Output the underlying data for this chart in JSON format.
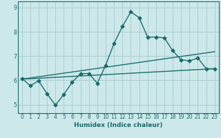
{
  "title": "",
  "xlabel": "Humidex (Indice chaleur)",
  "ylabel": "",
  "bg_color": "#cce8eb",
  "grid_color": "#aacdd2",
  "line_color": "#1a6b6b",
  "xlim": [
    -0.5,
    23.5
  ],
  "ylim": [
    4.65,
    9.25
  ],
  "xticks": [
    0,
    1,
    2,
    3,
    4,
    5,
    6,
    7,
    8,
    9,
    10,
    11,
    12,
    13,
    14,
    15,
    16,
    17,
    18,
    19,
    20,
    21,
    22,
    23
  ],
  "yticks": [
    5,
    6,
    7,
    8,
    9
  ],
  "line1_x": [
    0,
    1,
    2,
    3,
    4,
    5,
    6,
    7,
    8,
    9,
    10,
    11,
    12,
    13,
    14,
    15,
    16,
    17,
    18,
    19,
    20,
    21,
    22,
    23
  ],
  "line1_y": [
    6.08,
    5.78,
    5.98,
    5.45,
    4.98,
    5.42,
    5.92,
    6.28,
    6.28,
    5.88,
    6.62,
    7.52,
    8.22,
    8.82,
    8.58,
    7.78,
    7.78,
    7.75,
    7.22,
    6.85,
    6.8,
    6.92,
    6.48,
    6.48
  ],
  "line2_x": [
    0,
    23
  ],
  "line2_y": [
    6.05,
    7.18
  ],
  "line3_x": [
    0,
    23
  ],
  "line3_y": [
    6.05,
    6.48
  ],
  "marker_size": 2.5,
  "line_width": 1.0
}
